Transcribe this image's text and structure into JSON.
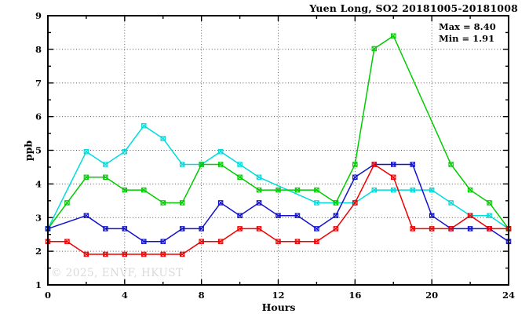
{
  "chart_data": {
    "type": "line",
    "title": "Yuen Long, SO2 20181005-20181008",
    "xlabel": "Hours",
    "ylabel": "ppb",
    "xlim": [
      0,
      24
    ],
    "ylim": [
      1,
      9
    ],
    "x_major_ticks": [
      0,
      4,
      8,
      12,
      16,
      20,
      24
    ],
    "x_minor_ticks": [
      2,
      6,
      10,
      14,
      18,
      22
    ],
    "y_major_ticks": [
      1,
      2,
      3,
      4,
      5,
      6,
      7,
      8,
      9
    ],
    "y_minor_ticks": [
      1.5,
      2.5,
      3.5,
      4.5,
      5.5,
      6.5,
      7.5,
      8.5
    ],
    "grid_x": [
      4,
      8,
      12,
      16,
      20
    ],
    "grid_y": [
      2,
      3,
      4,
      5,
      6,
      7,
      8
    ],
    "grid_on": true,
    "legend": "none",
    "annotation": {
      "max_label": "Max = 8.40",
      "min_label": "Min = 1.91"
    },
    "watermark": "© 2025, ENVF, HKUST",
    "x": [
      0,
      1,
      2,
      3,
      4,
      5,
      6,
      7,
      8,
      9,
      10,
      11,
      12,
      13,
      14,
      15,
      16,
      17,
      18,
      19,
      20,
      21,
      22,
      23,
      24
    ],
    "series": [
      {
        "name": "cyan-line",
        "color": "#00dcdc",
        "values": [
          2.67,
          null,
          4.96,
          4.58,
          4.96,
          5.73,
          5.35,
          4.58,
          4.58,
          4.96,
          4.58,
          4.2,
          null,
          null,
          3.44,
          3.44,
          3.44,
          3.82,
          3.82,
          3.82,
          3.82,
          3.44,
          3.06,
          3.06,
          2.67
        ]
      },
      {
        "name": "green-line",
        "color": "#00cc00",
        "values": [
          2.67,
          3.44,
          4.2,
          4.2,
          3.82,
          3.82,
          3.44,
          3.44,
          4.58,
          4.58,
          4.2,
          3.82,
          3.82,
          3.82,
          3.82,
          3.44,
          4.58,
          8.02,
          8.4,
          null,
          null,
          4.58,
          3.82,
          3.44,
          2.67
        ]
      },
      {
        "name": "blue-line",
        "color": "#1111cc",
        "values": [
          2.67,
          null,
          3.06,
          2.67,
          2.67,
          2.29,
          2.29,
          2.67,
          2.67,
          3.44,
          3.06,
          3.44,
          3.06,
          3.06,
          2.67,
          3.06,
          4.2,
          4.58,
          4.58,
          4.58,
          3.06,
          2.67,
          2.67,
          2.67,
          2.29
        ]
      },
      {
        "name": "red-line",
        "color": "#ee0000",
        "values": [
          2.29,
          2.29,
          1.91,
          1.91,
          1.91,
          1.91,
          1.91,
          1.91,
          2.29,
          2.29,
          2.67,
          2.67,
          2.29,
          2.29,
          2.29,
          2.67,
          3.44,
          4.58,
          4.2,
          2.67,
          2.67,
          2.67,
          3.06,
          2.67,
          2.67
        ]
      }
    ],
    "axis_color": "#000000",
    "grid_color": "#555555"
  }
}
